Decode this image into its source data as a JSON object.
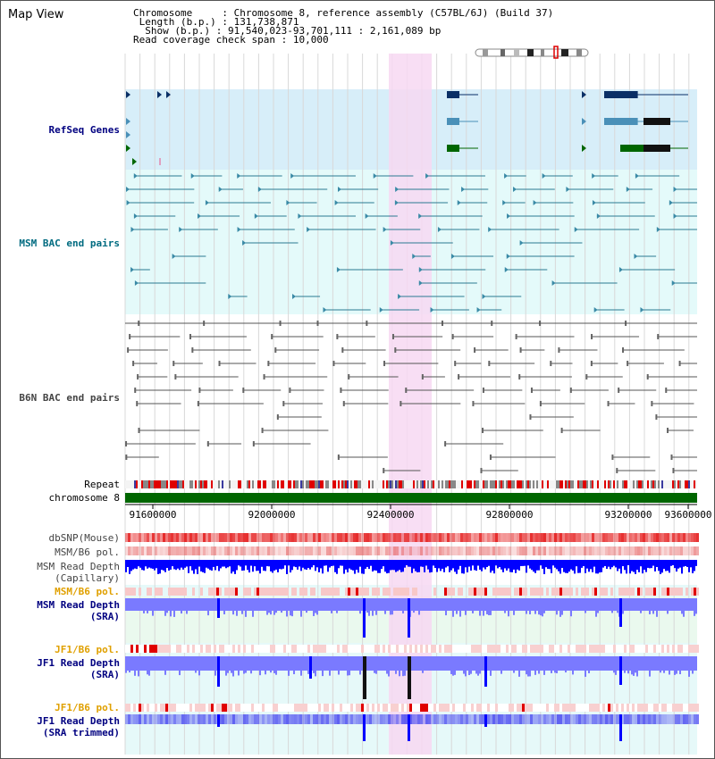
{
  "panel": {
    "title": "Map View"
  },
  "header": {
    "chromosome_key": "Chromosome",
    "chromosome_val": "Chromosome 8, reference assembly (C57BL/6J) (Build 37)",
    "length_key": "Length (b.p.)",
    "length_val": "131,738,871",
    "show_key": "Show (b.p.)",
    "show_val": "91,540,023-93,701,111 : 2,161,089 bp",
    "span_key": "Read coverage check span",
    "span_val": "10,000"
  },
  "tracks": {
    "refseq": "RefSeq Genes",
    "msm_bac": "MSM BAC end pairs",
    "b6n_bac": "B6N BAC end pairs",
    "repeat": "Repeat",
    "chromosome": "chromosome 8",
    "dbsnp": "dbSNP(Mouse)",
    "msm_b6_pol_1": "MSM/B6 pol.",
    "msm_depth_cap_1": "MSM Read Depth",
    "msm_depth_cap_2": "(Capillary)",
    "msm_b6_pol_2": "MSM/B6 pol.",
    "msm_depth_sra_1": "MSM Read Depth",
    "msm_depth_sra_2": "(SRA)",
    "jf1_b6_pol_1": "JF1/B6 pol.",
    "jf1_depth_1": "JF1 Read Depth",
    "jf1_depth_2": "(SRA)",
    "jf1_b6_pol_2": "JF1/B6 pol.",
    "jf1_trim_1": "JF1 Read Depth",
    "jf1_trim_2": "(SRA trimmed)"
  },
  "axis": {
    "ticks": [
      "91600000",
      "92000000",
      "92400000",
      "92800000",
      "93200000",
      "93600000"
    ]
  },
  "colors": {
    "refseq_bg": "#d7eef9",
    "msm_bg": "#e4fafa",
    "b6n_bg": "#ffffff",
    "highlight": "#f7d8f2",
    "navy_gene": "#0a2f66",
    "blue_gene": "#4a90b8",
    "green_gene": "#006600",
    "chromosome_bar": "#006600",
    "depth_blue": "#0000ff",
    "depth_light": "#7a7aff"
  }
}
